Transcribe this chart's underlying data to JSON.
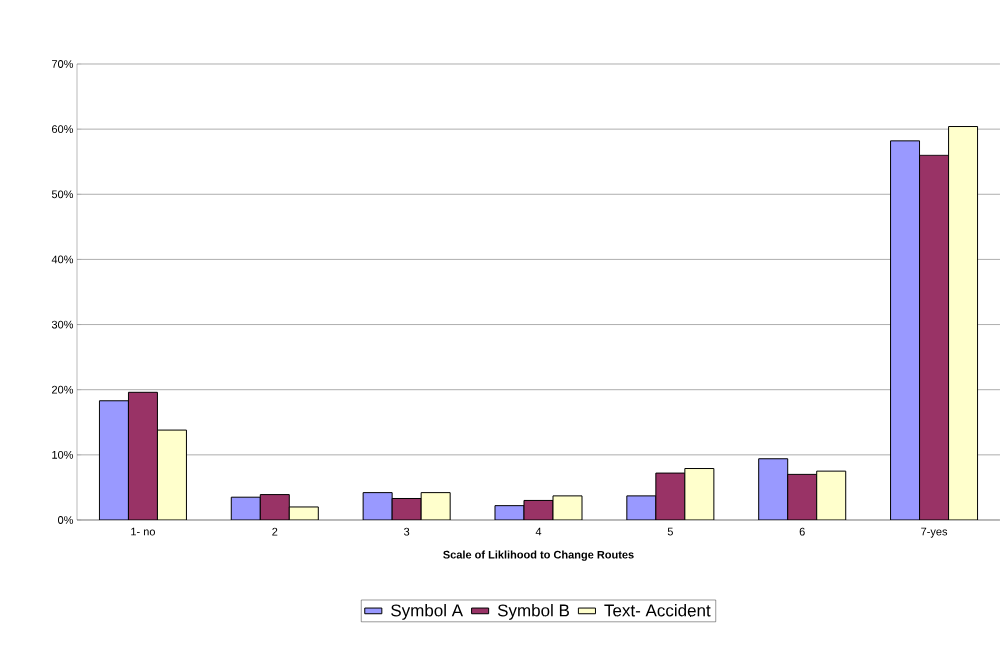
{
  "chart_data": {
    "type": "bar",
    "xlabel": "Scale of Liklihood to Change Routes",
    "categories": [
      "1- no",
      "2",
      "3",
      "4",
      "5",
      "6",
      "7-yes"
    ],
    "series": [
      {
        "name": "Symbol A",
        "color": "#9999ff",
        "values": [
          18.3,
          3.5,
          4.2,
          2.2,
          3.7,
          9.4,
          58.2
        ]
      },
      {
        "name": "Symbol B",
        "color": "#993366",
        "values": [
          19.6,
          3.9,
          3.3,
          3.0,
          7.2,
          7.0,
          56.0
        ]
      },
      {
        "name": "Text- Accident",
        "color": "#ffffcc",
        "values": [
          13.8,
          2.0,
          4.2,
          3.7,
          7.9,
          7.5,
          60.4
        ]
      }
    ],
    "ylim": [
      0,
      70
    ],
    "yticks": [
      {
        "value": 0,
        "label": "0%"
      },
      {
        "value": 10,
        "label": "10%"
      },
      {
        "value": 20,
        "label": "20%"
      },
      {
        "value": 30,
        "label": "30%"
      },
      {
        "value": 40,
        "label": "40%"
      },
      {
        "value": 50,
        "label": "50%"
      },
      {
        "value": 60,
        "label": "60%"
      },
      {
        "value": 70,
        "label": "70%"
      }
    ],
    "grid": "y",
    "legend": "bottom"
  }
}
